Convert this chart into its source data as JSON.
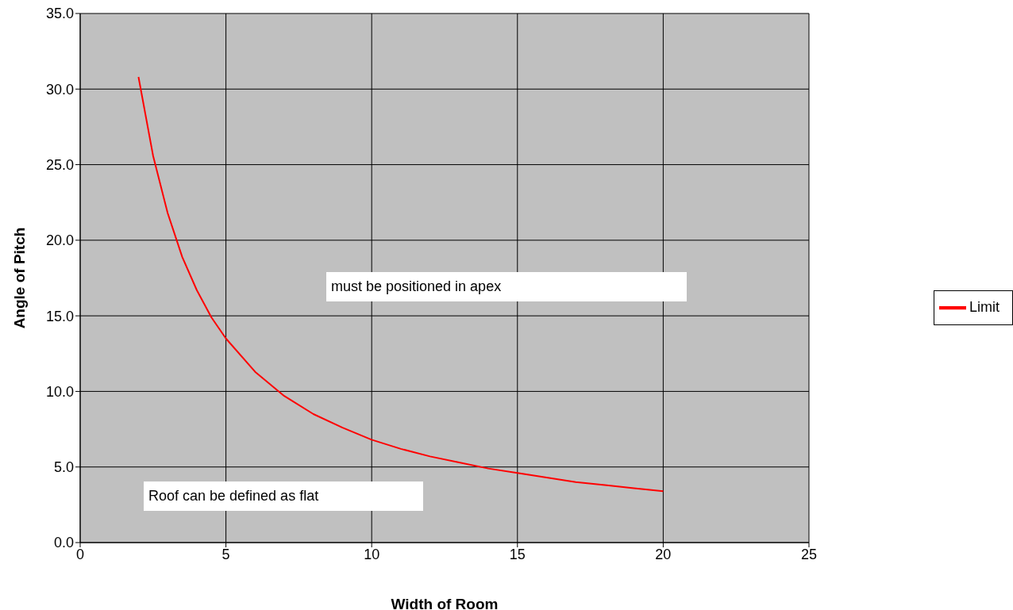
{
  "chart_data": {
    "type": "line",
    "xlabel": "Width of Room",
    "ylabel": "Angle of Pitch",
    "x": [
      2,
      2.5,
      3,
      3.5,
      4,
      4.5,
      5,
      6,
      7,
      8,
      9,
      10,
      11,
      12,
      13,
      14,
      15,
      16,
      17,
      18,
      19,
      20
    ],
    "series": [
      {
        "name": "Limit",
        "color": "#ff0000",
        "values": [
          30.8,
          25.6,
          21.8,
          18.9,
          16.7,
          14.9,
          13.5,
          11.3,
          9.7,
          8.5,
          7.6,
          6.8,
          6.2,
          5.7,
          5.3,
          4.9,
          4.6,
          4.3,
          4.0,
          3.8,
          3.6,
          3.4
        ]
      }
    ],
    "xlim": [
      0,
      25
    ],
    "xticks": [
      0,
      5,
      10,
      15,
      20,
      25
    ],
    "ylim": [
      0,
      35
    ],
    "yticks": [
      {
        "value": 0,
        "label": "0.0"
      },
      {
        "value": 5,
        "label": "5.0"
      },
      {
        "value": 10,
        "label": "10.0"
      },
      {
        "value": 15,
        "label": "15.0"
      },
      {
        "value": 20,
        "label": "20.0"
      },
      {
        "value": 25,
        "label": "25.0"
      },
      {
        "value": 30,
        "label": "30.0"
      },
      {
        "value": 35,
        "label": "35.0"
      }
    ],
    "annotations": [
      "must be positioned in apex",
      "Roof can be defined as flat"
    ],
    "grid": true,
    "legend": "right",
    "marker": "none",
    "line_style": "solid"
  }
}
